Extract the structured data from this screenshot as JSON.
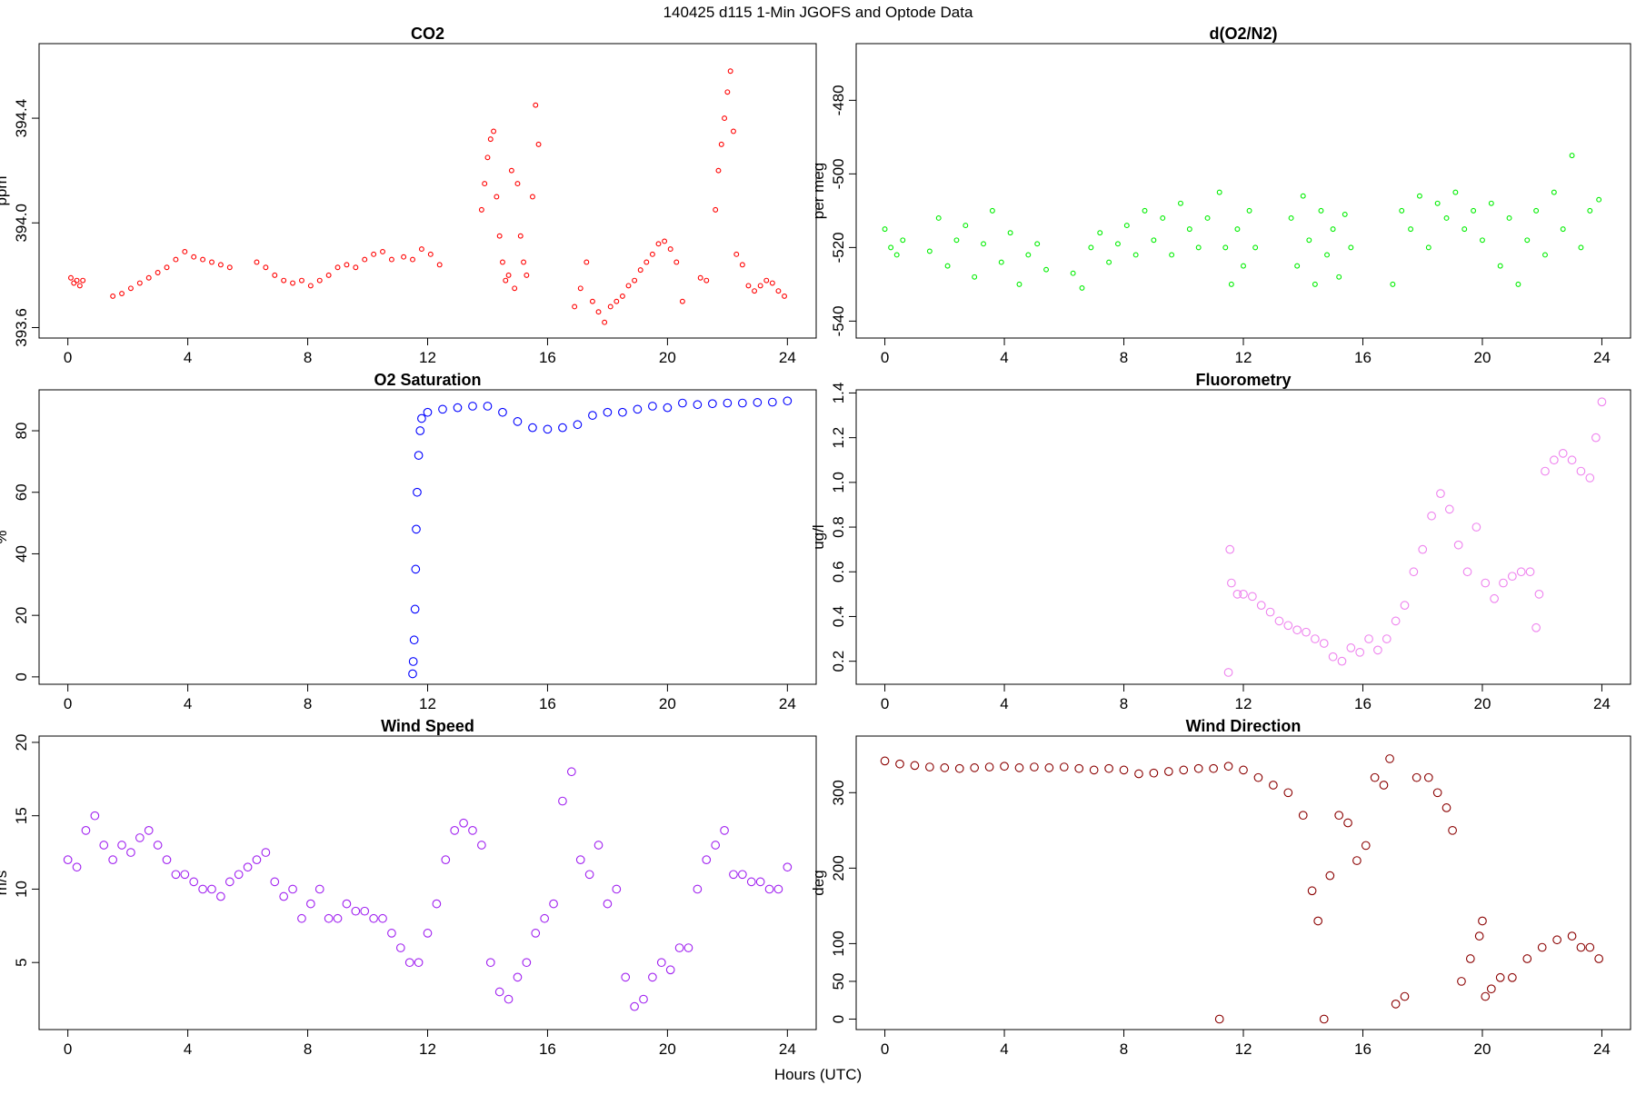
{
  "title": "140425   d115   1-Min  JGOFS and Optode Data",
  "x_label": "Hours (UTC)",
  "chart_data": [
    {
      "type": "scatter",
      "title": "CO2",
      "y_label": "ppm",
      "color": "#ff0000",
      "xlim": [
        -0.96,
        24.96
      ],
      "xticks": [
        0,
        4,
        8,
        12,
        16,
        20,
        24
      ],
      "ylim": [
        393.56,
        394.685
      ],
      "yticks": [
        393.6,
        {
          "value": 394,
          "label": "394.0"
        },
        394.4
      ],
      "x": [
        0.1,
        0.2,
        0.3,
        0.4,
        0.5,
        1.5,
        1.8,
        2.1,
        2.4,
        2.7,
        3.0,
        3.3,
        3.6,
        3.9,
        4.2,
        4.5,
        4.8,
        5.1,
        5.4,
        6.3,
        6.6,
        6.9,
        7.2,
        7.5,
        7.8,
        8.1,
        8.4,
        8.7,
        9.0,
        9.3,
        9.6,
        9.9,
        10.2,
        10.5,
        10.8,
        11.2,
        11.5,
        11.8,
        12.1,
        12.4,
        13.8,
        13.9,
        14.0,
        14.1,
        14.2,
        14.3,
        14.4,
        14.5,
        14.6,
        14.7,
        14.8,
        14.9,
        15.0,
        15.1,
        15.2,
        15.3,
        15.5,
        15.6,
        15.7,
        16.9,
        17.1,
        17.3,
        17.5,
        17.7,
        17.9,
        18.1,
        18.3,
        18.5,
        18.7,
        18.9,
        19.1,
        19.3,
        19.5,
        19.7,
        19.9,
        20.1,
        20.3,
        20.5,
        21.1,
        21.3,
        21.6,
        21.7,
        21.8,
        21.9,
        22.0,
        22.1,
        22.2,
        22.3,
        22.5,
        22.7,
        22.9,
        23.1,
        23.3,
        23.5,
        23.7,
        23.9
      ],
      "values": [
        393.79,
        393.77,
        393.78,
        393.76,
        393.78,
        393.72,
        393.73,
        393.75,
        393.77,
        393.79,
        393.81,
        393.83,
        393.86,
        393.89,
        393.87,
        393.86,
        393.85,
        393.84,
        393.83,
        393.85,
        393.83,
        393.8,
        393.78,
        393.77,
        393.78,
        393.76,
        393.78,
        393.8,
        393.83,
        393.84,
        393.83,
        393.86,
        393.88,
        393.89,
        393.86,
        393.87,
        393.86,
        393.9,
        393.88,
        393.84,
        394.05,
        394.15,
        394.25,
        394.32,
        394.35,
        394.1,
        393.95,
        393.85,
        393.78,
        393.8,
        394.2,
        393.75,
        394.15,
        393.95,
        393.85,
        393.8,
        394.1,
        394.45,
        394.3,
        393.68,
        393.75,
        393.85,
        393.7,
        393.66,
        393.62,
        393.68,
        393.7,
        393.72,
        393.76,
        393.78,
        393.82,
        393.85,
        393.88,
        393.92,
        393.93,
        393.9,
        393.85,
        393.7,
        393.79,
        393.78,
        394.05,
        394.2,
        394.3,
        394.4,
        394.5,
        394.58,
        394.35,
        393.88,
        393.84,
        393.76,
        393.74,
        393.76,
        393.78,
        393.77,
        393.74,
        393.72
      ]
    },
    {
      "type": "scatter",
      "title": "d(O2/N2)",
      "y_label": "per meg",
      "color": "#00ee00",
      "xlim": [
        -0.96,
        24.96
      ],
      "xticks": [
        0,
        4,
        8,
        12,
        16,
        20,
        24
      ],
      "ylim": [
        -544.6,
        -464.6
      ],
      "yticks": [
        -540,
        -520,
        -500,
        -480
      ],
      "x": [
        0,
        0.2,
        0.4,
        0.6,
        1.5,
        1.8,
        2.1,
        2.4,
        2.7,
        3.0,
        3.3,
        3.6,
        3.9,
        4.2,
        4.5,
        4.8,
        5.1,
        5.4,
        6.3,
        6.6,
        6.9,
        7.2,
        7.5,
        7.8,
        8.1,
        8.4,
        8.7,
        9.0,
        9.3,
        9.6,
        9.9,
        10.2,
        10.5,
        10.8,
        11.2,
        11.4,
        11.6,
        11.8,
        12.0,
        12.2,
        12.4,
        13.6,
        13.8,
        14.0,
        14.2,
        14.4,
        14.6,
        14.8,
        15.0,
        15.2,
        15.4,
        15.6,
        17.0,
        17.3,
        17.6,
        17.9,
        18.2,
        18.5,
        18.8,
        19.1,
        19.4,
        19.7,
        20.0,
        20.3,
        20.6,
        20.9,
        21.2,
        21.5,
        21.8,
        22.1,
        22.4,
        22.7,
        23.0,
        23.3,
        23.6,
        23.9
      ],
      "values": [
        -515,
        -520,
        -522,
        -518,
        -521,
        -512,
        -525,
        -518,
        -514,
        -528,
        -519,
        -510,
        -524,
        -516,
        -530,
        -522,
        -519,
        -526,
        -527,
        -531,
        -520,
        -516,
        -524,
        -519,
        -514,
        -522,
        -510,
        -518,
        -512,
        -522,
        -508,
        -515,
        -520,
        -512,
        -505,
        -520,
        -530,
        -515,
        -525,
        -510,
        -520,
        -512,
        -525,
        -506,
        -518,
        -530,
        -510,
        -522,
        -515,
        -528,
        -511,
        -520,
        -530,
        -510,
        -515,
        -506,
        -520,
        -508,
        -512,
        -505,
        -515,
        -510,
        -518,
        -508,
        -525,
        -512,
        -530,
        -518,
        -510,
        -522,
        -505,
        -515,
        -495,
        -520,
        -510,
        -507
      ]
    },
    {
      "type": "scatter",
      "title": "O2 Saturation",
      "y_label": "%",
      "color": "#0000ff",
      "xlim": [
        -0.96,
        24.96
      ],
      "xticks": [
        0,
        4,
        8,
        12,
        16,
        20,
        24
      ],
      "ylim": [
        -2.4,
        93.3
      ],
      "yticks": [
        0,
        20,
        40,
        60,
        80
      ],
      "x": [
        11.5,
        11.52,
        11.55,
        11.58,
        11.6,
        11.62,
        11.65,
        11.7,
        11.75,
        11.8,
        12.0,
        12.5,
        13.0,
        13.5,
        14.0,
        14.5,
        15.0,
        15.5,
        16.0,
        16.5,
        17.0,
        17.5,
        18.0,
        18.5,
        19.0,
        19.5,
        20.0,
        20.5,
        21.0,
        21.5,
        22.0,
        22.5,
        23.0,
        23.5,
        24.0
      ],
      "values": [
        1,
        5,
        12,
        22,
        35,
        48,
        60,
        72,
        80,
        84,
        86,
        87,
        87.5,
        88,
        88,
        86,
        83,
        81,
        80.5,
        81,
        82,
        85,
        86,
        86,
        87,
        88,
        87.5,
        89,
        88.5,
        88.8,
        89,
        89,
        89.2,
        89.3,
        89.7
      ]
    },
    {
      "type": "scatter",
      "title": "Fluorometry",
      "y_label": "ug/l",
      "color": "#ee82ee",
      "xlim": [
        -0.96,
        24.96
      ],
      "xticks": [
        0,
        4,
        8,
        12,
        16,
        20,
        24
      ],
      "ylim": [
        0.097,
        1.414
      ],
      "yticks": [
        0.2,
        0.4,
        0.6,
        0.8,
        {
          "value": 1,
          "label": "1.0"
        },
        1.2,
        1.4
      ],
      "x": [
        11.5,
        11.55,
        11.6,
        11.8,
        12.0,
        12.3,
        12.6,
        12.9,
        13.2,
        13.5,
        13.8,
        14.1,
        14.4,
        14.7,
        15.0,
        15.3,
        15.6,
        15.9,
        16.2,
        16.5,
        16.8,
        17.1,
        17.4,
        17.7,
        18.0,
        18.3,
        18.6,
        18.9,
        19.2,
        19.5,
        19.8,
        20.1,
        20.4,
        20.7,
        21.0,
        21.3,
        21.6,
        21.8,
        21.9,
        22.1,
        22.4,
        22.7,
        23.0,
        23.3,
        23.6,
        23.8,
        24.0
      ],
      "values": [
        0.15,
        0.7,
        0.55,
        0.5,
        0.5,
        0.49,
        0.45,
        0.42,
        0.38,
        0.36,
        0.34,
        0.33,
        0.3,
        0.28,
        0.22,
        0.2,
        0.26,
        0.24,
        0.3,
        0.25,
        0.3,
        0.38,
        0.45,
        0.6,
        0.7,
        0.85,
        0.95,
        0.88,
        0.72,
        0.6,
        0.8,
        0.55,
        0.48,
        0.55,
        0.58,
        0.6,
        0.6,
        0.35,
        0.5,
        1.05,
        1.1,
        1.13,
        1.1,
        1.05,
        1.02,
        1.2,
        1.36
      ]
    },
    {
      "type": "scatter",
      "title": "Wind Speed",
      "y_label": "m/s",
      "color": "#a020f0",
      "xlim": [
        -0.96,
        24.96
      ],
      "xticks": [
        0,
        4,
        8,
        12,
        16,
        20,
        24
      ],
      "ylim": [
        0.43,
        20.43
      ],
      "yticks": [
        5,
        10,
        15,
        20
      ],
      "x": [
        0,
        0.3,
        0.6,
        0.9,
        1.2,
        1.5,
        1.8,
        2.1,
        2.4,
        2.7,
        3,
        3.3,
        3.6,
        3.9,
        4.2,
        4.5,
        4.8,
        5.1,
        5.4,
        5.7,
        6,
        6.3,
        6.6,
        6.9,
        7.2,
        7.5,
        7.8,
        8.1,
        8.4,
        8.7,
        9,
        9.3,
        9.6,
        9.9,
        10.2,
        10.5,
        10.8,
        11.1,
        11.4,
        11.7,
        12,
        12.3,
        12.6,
        12.9,
        13.2,
        13.5,
        13.8,
        14.1,
        14.4,
        14.7,
        15,
        15.3,
        15.6,
        15.9,
        16.2,
        16.5,
        16.8,
        17.1,
        17.4,
        17.7,
        18,
        18.3,
        18.6,
        18.9,
        19.2,
        19.5,
        19.8,
        20.1,
        20.4,
        20.7,
        21,
        21.3,
        21.6,
        21.9,
        22.2,
        22.5,
        22.8,
        23.1,
        23.4,
        23.7,
        24
      ],
      "values": [
        12,
        11.5,
        14,
        15,
        13,
        12,
        13,
        12.5,
        13.5,
        14,
        13,
        12,
        11,
        11,
        10.5,
        10,
        10,
        9.5,
        10.5,
        11,
        11.5,
        12,
        12.5,
        10.5,
        9.5,
        10,
        8,
        9,
        10,
        8,
        8,
        9,
        8.5,
        8.5,
        8,
        8,
        7,
        6,
        5,
        5,
        7,
        9,
        12,
        14,
        14.5,
        14,
        13,
        5,
        3,
        2.5,
        4,
        5,
        7,
        8,
        9,
        16,
        18,
        12,
        11,
        13,
        9,
        10,
        4,
        2,
        2.5,
        4,
        5,
        4.5,
        6,
        6,
        10,
        12,
        13,
        14,
        11,
        11,
        10.5,
        10.5,
        10,
        10,
        11.5
      ]
    },
    {
      "type": "scatter",
      "title": "Wind Direction",
      "y_label": "deg",
      "color": "#8b0000",
      "xlim": [
        -0.96,
        24.96
      ],
      "xticks": [
        0,
        4,
        8,
        12,
        16,
        20,
        24
      ],
      "ylim": [
        -13.9,
        375
      ],
      "yticks": [
        0,
        50,
        100,
        200,
        300
      ],
      "x": [
        0,
        0.5,
        1,
        1.5,
        2,
        2.5,
        3,
        3.5,
        4,
        4.5,
        5,
        5.5,
        6,
        6.5,
        7,
        7.5,
        8,
        8.5,
        9,
        9.5,
        10,
        10.5,
        11,
        11.2,
        11.5,
        12,
        12.5,
        13,
        13.5,
        14,
        14.3,
        14.5,
        14.7,
        14.9,
        15.2,
        15.5,
        15.8,
        16.1,
        16.4,
        16.7,
        16.9,
        17.1,
        17.4,
        17.8,
        18.2,
        18.5,
        18.8,
        19.0,
        19.3,
        19.6,
        19.9,
        20.0,
        20.1,
        20.3,
        20.6,
        21.0,
        21.5,
        22.0,
        22.5,
        23.0,
        23.3,
        23.6,
        23.9
      ],
      "values": [
        342,
        338,
        336,
        334,
        333,
        332,
        333,
        334,
        335,
        333,
        334,
        333,
        334,
        332,
        330,
        332,
        330,
        325,
        326,
        328,
        330,
        332,
        332,
        0,
        335,
        330,
        320,
        310,
        300,
        270,
        170,
        130,
        0,
        190,
        270,
        260,
        210,
        230,
        320,
        310,
        345,
        20,
        30,
        320,
        320,
        300,
        280,
        250,
        50,
        80,
        110,
        130,
        30,
        40,
        55,
        55,
        80,
        95,
        105,
        110,
        95,
        95,
        80
      ]
    }
  ]
}
